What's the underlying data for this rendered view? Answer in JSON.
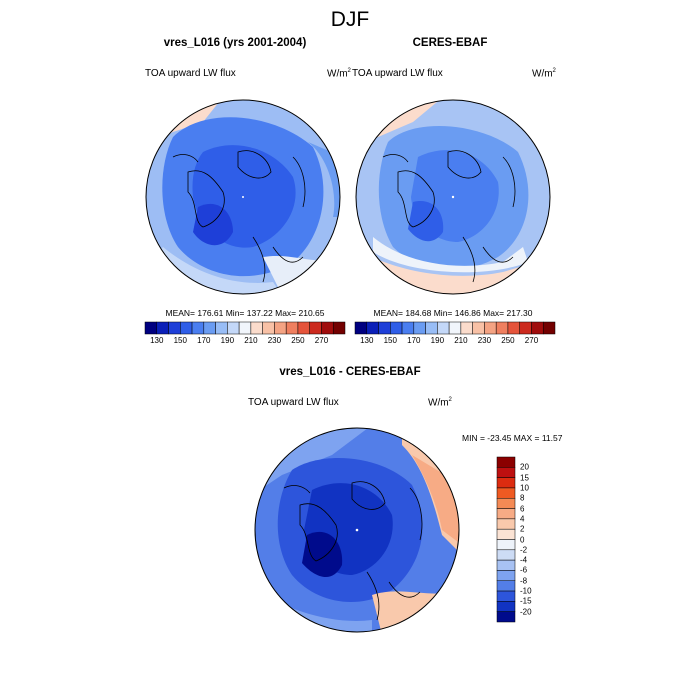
{
  "title": "DJF",
  "panels": [
    {
      "title": "vres_L016 (yrs 2001-2004)",
      "variable": "TOA upward LW flux",
      "units": "W/m",
      "units_exp": "2",
      "stats": "MEAN= 176.61  Min= 137.22  Max= 210.65"
    },
    {
      "title": "CERES-EBAF",
      "variable": "TOA upward LW flux",
      "units": "W/m",
      "units_exp": "2",
      "stats": "MEAN= 184.68  Min= 146.86  Max= 217.30"
    },
    {
      "title": "vres_L016 - CERES-EBAF",
      "variable": "TOA upward LW flux",
      "units": "W/m",
      "units_exp": "2",
      "stats": "MIN = -23.45 MAX =  11.57"
    }
  ],
  "abs_colorbar": {
    "labels": [
      "130",
      "150",
      "170",
      "190",
      "210",
      "230",
      "250",
      "270"
    ],
    "colors": [
      "#000080",
      "#0a1fb8",
      "#1e3fd8",
      "#2f5ee8",
      "#4a7ef0",
      "#6a9cf2",
      "#98bdf6",
      "#c4d8f8",
      "#f1f5fb",
      "#fbdccc",
      "#f8c1a6",
      "#f4a383",
      "#ef7f5f",
      "#e5543b",
      "#cc2a1e",
      "#a00c0c",
      "#730000"
    ]
  },
  "diff_colorbar": {
    "labels": [
      "20",
      "15",
      "10",
      "8",
      "6",
      "4",
      "2",
      "0",
      "-2",
      "-4",
      "-6",
      "-8",
      "-10",
      "-15",
      "-20"
    ],
    "colors": [
      "#8b0000",
      "#bd1010",
      "#dc2c10",
      "#ef5a22",
      "#f48a55",
      "#f7ab85",
      "#f9c9ac",
      "#fbe3d4",
      "#eef3fa",
      "#cddcf5",
      "#a8c2f3",
      "#7ea3f0",
      "#537ee8",
      "#2d55db",
      "#1133c2",
      "#000b8c"
    ]
  }
}
